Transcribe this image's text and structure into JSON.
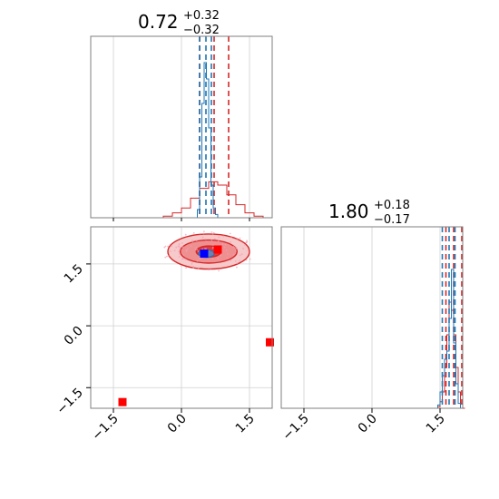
{
  "chart_data": [
    {
      "type": "histogram",
      "panel": "marginal-param-1",
      "title": {
        "median": "0.72",
        "upper": "+0.32",
        "lower": "−0.32"
      },
      "xlim": [
        -2.0,
        2.0
      ],
      "series": [
        {
          "color": "#1f77b4",
          "bins": [
            0.3,
            0.35,
            0.4,
            0.45,
            0.5,
            0.55,
            0.6,
            0.65,
            0.7,
            0.75,
            0.8,
            0.85
          ],
          "values": [
            0.0,
            0.05,
            0.25,
            0.7,
            0.95,
            0.85,
            0.55,
            0.2,
            0.06,
            0.02,
            0.0,
            0.0
          ],
          "quantile_lines": [
            0.4,
            0.54,
            0.66
          ]
        },
        {
          "color": "#d62728",
          "bins": [
            -0.6,
            -0.4,
            -0.2,
            0.0,
            0.2,
            0.4,
            0.6,
            0.8,
            1.0,
            1.2,
            1.4,
            1.6,
            1.8
          ],
          "values": [
            0.0,
            0.01,
            0.03,
            0.06,
            0.12,
            0.18,
            0.22,
            0.2,
            0.14,
            0.08,
            0.03,
            0.01,
            0.0
          ],
          "quantile_lines": [
            0.4,
            0.72,
            1.04
          ]
        }
      ]
    },
    {
      "type": "histogram",
      "panel": "marginal-param-2",
      "title": {
        "median": "1.80",
        "upper": "+0.18",
        "lower": "−0.17"
      },
      "xlim": [
        -2.0,
        2.0
      ],
      "xticks": [
        "−1.5",
        "0.0",
        "1.5"
      ],
      "series": [
        {
          "color": "#1f77b4",
          "bins": [
            1.4,
            1.45,
            1.5,
            1.55,
            1.6,
            1.65,
            1.7,
            1.75,
            1.8,
            1.85,
            1.9,
            1.95
          ],
          "values": [
            0.0,
            0.02,
            0.1,
            0.2,
            0.3,
            0.35,
            0.55,
            0.85,
            0.4,
            0.15,
            0.03,
            0.0
          ],
          "quantile_lines": [
            1.55,
            1.7,
            1.83
          ]
        },
        {
          "color": "#d62728",
          "bins": [
            1.4,
            1.45,
            1.5,
            1.55,
            1.6,
            1.65,
            1.7,
            1.75,
            1.8,
            1.85,
            1.9,
            1.95,
            2.0
          ],
          "values": [
            0.0,
            0.01,
            0.04,
            0.1,
            0.25,
            0.45,
            0.65,
            0.6,
            0.45,
            0.25,
            0.1,
            0.03,
            0.0
          ],
          "quantile_lines": [
            1.63,
            1.8,
            1.98
          ]
        }
      ]
    },
    {
      "type": "scatter",
      "panel": "joint",
      "xlim": [
        -2.0,
        2.0
      ],
      "ylim": [
        -2.0,
        2.4
      ],
      "xticks": [
        "−1.5",
        "0.0",
        "1.5"
      ],
      "yticks": [
        "−1.5",
        "0.0",
        "1.5"
      ],
      "grid": true,
      "contours": [
        {
          "color": "#d62728",
          "center": [
            0.6,
            1.8
          ],
          "levels": [
            [
              1.8,
              0.85
            ],
            [
              1.25,
              0.56
            ],
            [
              0.55,
              0.27
            ]
          ]
        },
        {
          "color": "#1f77b4",
          "center": [
            0.55,
            1.75
          ],
          "levels": [
            [
              0.35,
              0.18
            ]
          ]
        }
      ],
      "markers": [
        {
          "x": 0.5,
          "y": 1.75,
          "color": "#0000ff",
          "shape": "square"
        },
        {
          "x": 0.8,
          "y": 1.85,
          "color": "#ff0000",
          "shape": "square"
        },
        {
          "x": 1.95,
          "y": -0.4,
          "color": "#ff0000",
          "shape": "square"
        },
        {
          "x": -1.3,
          "y": -1.85,
          "color": "#ff0000",
          "shape": "square"
        }
      ]
    }
  ]
}
